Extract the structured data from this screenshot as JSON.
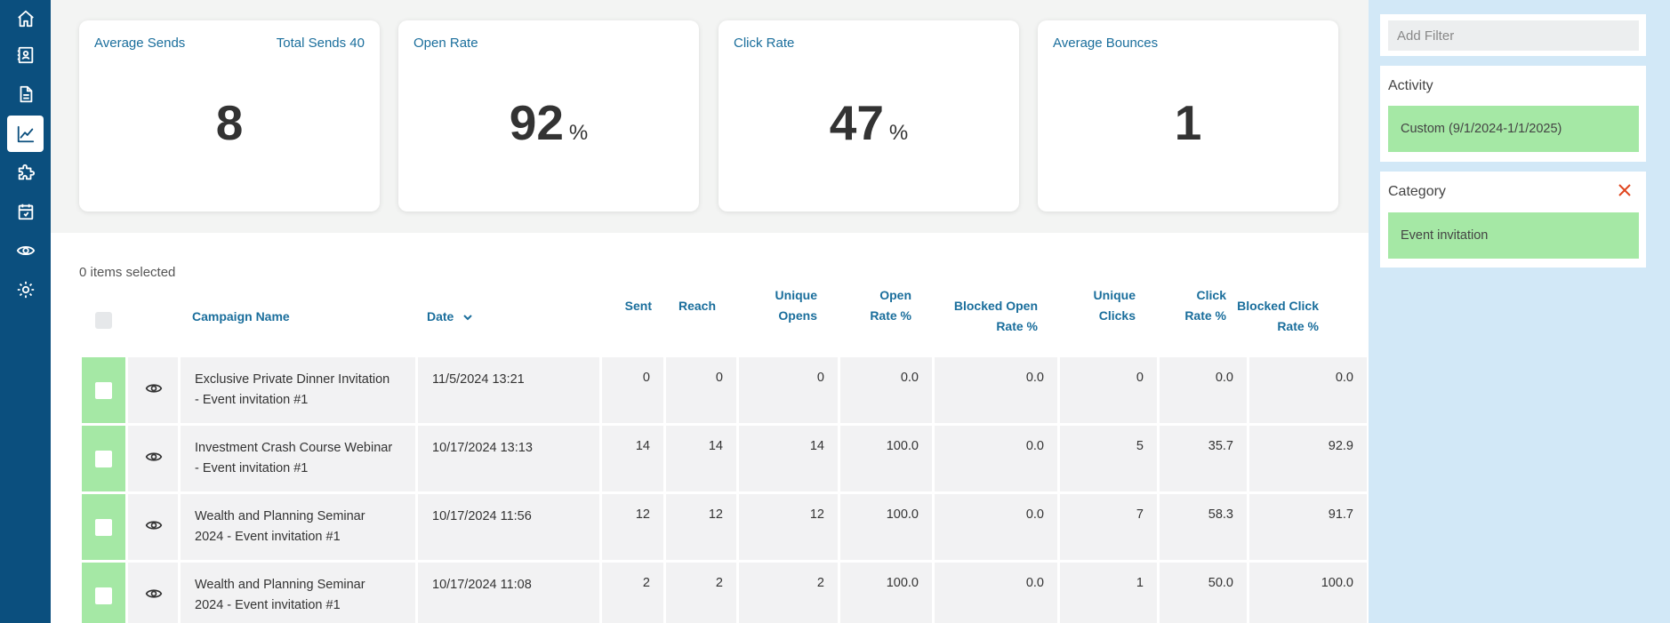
{
  "sidebar": {
    "items": [
      {
        "icon": "home-icon",
        "active": false
      },
      {
        "icon": "contacts-icon",
        "active": false
      },
      {
        "icon": "document-icon",
        "active": false
      },
      {
        "icon": "chart-line-icon",
        "active": true
      },
      {
        "icon": "puzzle-icon",
        "active": false
      },
      {
        "icon": "calendar-icon",
        "active": false
      },
      {
        "icon": "eye-icon",
        "active": false
      },
      {
        "icon": "gear-icon",
        "active": false
      }
    ]
  },
  "cards": {
    "average_sends": {
      "label": "Average Sends",
      "extra": "Total Sends 40",
      "value": "8"
    },
    "open_rate": {
      "label": "Open Rate",
      "value": "92",
      "unit": "%"
    },
    "click_rate": {
      "label": "Click Rate",
      "value": "47",
      "unit": "%"
    },
    "average_bounces": {
      "label": "Average Bounces",
      "value": "1"
    }
  },
  "table": {
    "selected_text": "0 items selected",
    "headers": {
      "campaign_name": "Campaign Name",
      "date": "Date",
      "sent": "Sent",
      "reach": "Reach",
      "unique_opens_1": "Unique",
      "unique_opens_2": "Opens",
      "open_rate_1": "Open",
      "open_rate_2": "Rate %",
      "blocked_open_1": "Blocked Open",
      "blocked_open_2": "Rate %",
      "unique_clicks_1": "Unique",
      "unique_clicks_2": "Clicks",
      "click_rate_1": "Click",
      "click_rate_2": "Rate %",
      "blocked_click_1": "Blocked Click",
      "blocked_click_2": "Rate %"
    },
    "rows": [
      {
        "name1": "Exclusive Private Dinner Invitation",
        "name2": "- Event invitation #1",
        "date": "11/5/2024 13:21",
        "sent": "0",
        "reach": "0",
        "unique_opens": "0",
        "open_rate": "0.0",
        "blocked_open_rate": "0.0",
        "unique_clicks": "0",
        "click_rate": "0.0",
        "blocked_click_rate": "0.0"
      },
      {
        "name1": "Investment Crash Course Webinar",
        "name2": "- Event invitation #1",
        "date": "10/17/2024 13:13",
        "sent": "14",
        "reach": "14",
        "unique_opens": "14",
        "open_rate": "100.0",
        "blocked_open_rate": "0.0",
        "unique_clicks": "5",
        "click_rate": "35.7",
        "blocked_click_rate": "92.9"
      },
      {
        "name1": "Wealth and Planning Seminar",
        "name2": "2024 - Event invitation #1",
        "date": "10/17/2024 11:56",
        "sent": "12",
        "reach": "12",
        "unique_opens": "12",
        "open_rate": "100.0",
        "blocked_open_rate": "0.0",
        "unique_clicks": "7",
        "click_rate": "58.3",
        "blocked_click_rate": "91.7"
      },
      {
        "name1": "Wealth and Planning Seminar",
        "name2": "2024 - Event invitation #1",
        "date": "10/17/2024 11:08",
        "sent": "2",
        "reach": "2",
        "unique_opens": "2",
        "open_rate": "100.0",
        "blocked_open_rate": "0.0",
        "unique_clicks": "1",
        "click_rate": "50.0",
        "blocked_click_rate": "100.0"
      }
    ]
  },
  "filters": {
    "add_filter_placeholder": "Add Filter",
    "activity_title": "Activity",
    "activity_value": "Custom (9/1/2024-1/1/2025)",
    "category_title": "Category",
    "category_value": "Event invitation"
  },
  "colors": {
    "sidebar": "#0b4f7e",
    "accent_text": "#1a6e9c",
    "chip_green": "#a5e8a5",
    "panel_bg": "#d2e8f7",
    "close_red": "#e0461f"
  }
}
